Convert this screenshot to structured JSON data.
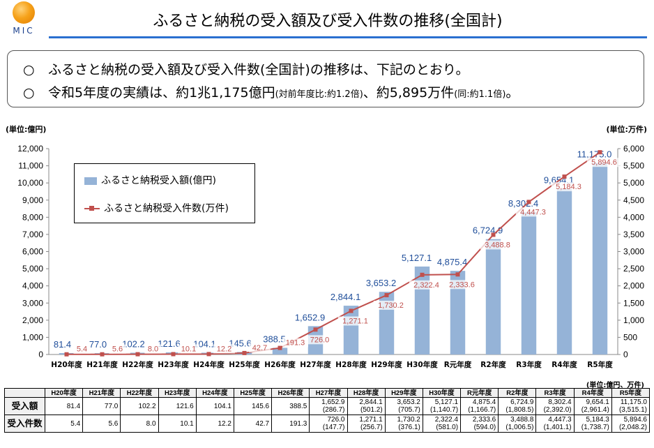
{
  "logo": {
    "text": "MIC",
    "accent": "#f6a21a"
  },
  "header": {
    "title": "ふるさと納税の受入額及び受入件数の推移(全国計)"
  },
  "summary": {
    "bullet": "○",
    "line1": "ふるさと納税の受入額及び受入件数(全国計)の推移は、下記のとおり。",
    "line2_main": "令和5年度の実績は、約1兆1,175億円",
    "line2_note1": "(対前年度比:約1.2倍)",
    "line2_mid": "、約5,895万件",
    "line2_note2": "(同:約1.1倍)",
    "line2_end": "。"
  },
  "axis_units": {
    "left": "(単位:億円)",
    "right": "(単位:万件)"
  },
  "table_unit": "(単位:億円、万件)",
  "chart_data": {
    "type": "bar+line",
    "categories": [
      "H20年度",
      "H21年度",
      "H22年度",
      "H23年度",
      "H24年度",
      "H25年度",
      "H26年度",
      "H27年度",
      "H28年度",
      "H29年度",
      "H30年度",
      "R元年度",
      "R2年度",
      "R3年度",
      "R4年度",
      "R5年度"
    ],
    "series": [
      {
        "name": "ふるさと納税受入額(億円)",
        "type": "bar",
        "axis": "left",
        "color": "#95b3d7",
        "label_color": "#1f4e9a",
        "values": [
          81.4,
          77.0,
          102.2,
          121.6,
          104.1,
          145.6,
          388.5,
          1652.9,
          2844.1,
          3653.2,
          5127.1,
          4875.4,
          6724.9,
          8302.4,
          9654.1,
          11175.0
        ],
        "labels": [
          "81.4",
          "77.0",
          "102.2",
          "121.6",
          "104.1",
          "145.6",
          "388.5",
          "1,652.9",
          "2,844.1",
          "3,653.2",
          "5,127.1",
          "4,875.4",
          "6,724.9",
          "8,302.4",
          "9,654.1",
          "11,175.0"
        ]
      },
      {
        "name": "ふるさと納税受入件数(万件)",
        "type": "line",
        "axis": "right",
        "color": "#c0504d",
        "label_color": "#c0504d",
        "values": [
          5.4,
          5.6,
          8.0,
          10.1,
          12.2,
          42.7,
          191.3,
          726.0,
          1271.1,
          1730.2,
          2322.4,
          2333.6,
          3488.8,
          4447.3,
          5184.3,
          5894.6
        ],
        "labels": [
          "5.4",
          "5.6",
          "8.0",
          "10.1",
          "12.2",
          "42.7",
          "191.3",
          "726.0",
          "1,271.1",
          "1,730.2",
          "2,322.4",
          "2,333.6",
          "3,488.8",
          "4,447.3",
          "5,184.3",
          "5,894.6"
        ]
      }
    ],
    "y_left": {
      "min": 0,
      "max": 12000,
      "step": 1000,
      "ticks": [
        "0",
        "1,000",
        "2,000",
        "3,000",
        "4,000",
        "5,000",
        "6,000",
        "7,000",
        "8,000",
        "9,000",
        "10,000",
        "11,000",
        "12,000"
      ]
    },
    "y_right": {
      "min": 0,
      "max": 6000,
      "step": 500,
      "ticks": [
        "0",
        "500",
        "1,000",
        "1,500",
        "2,000",
        "2,500",
        "3,000",
        "3,500",
        "4,000",
        "4,500",
        "5,000",
        "5,500",
        "6,000"
      ]
    },
    "legend": "top-left",
    "grid": false
  },
  "table": {
    "headers": [
      "H20年度",
      "H21年度",
      "H22年度",
      "H23年度",
      "H24年度",
      "H25年度",
      "H26年度",
      "H27年度",
      "H28年度",
      "H29年度",
      "H30年度",
      "R元年度",
      "R2年度",
      "R3年度",
      "R4年度",
      "R5年度"
    ],
    "rows": [
      {
        "label": "受入額",
        "values": [
          "81.4",
          "77.0",
          "102.2",
          "121.6",
          "104.1",
          "145.6",
          "388.5",
          "1,652.9",
          "2,844.1",
          "3,653.2",
          "5,127.1",
          "4,875.4",
          "6,724.9",
          "8,302.4",
          "9,654.1",
          "11,175.0"
        ],
        "subs": [
          "",
          "",
          "",
          "",
          "",
          "",
          "",
          "(286.7)",
          "(501.2)",
          "(705.7)",
          "(1,140.7)",
          "(1,166.7)",
          "(1,808.5)",
          "(2,392.0)",
          "(2,961.4)",
          "(3,515.1)"
        ]
      },
      {
        "label": "受入件数",
        "values": [
          "5.4",
          "5.6",
          "8.0",
          "10.1",
          "12.2",
          "42.7",
          "191.3",
          "726.0",
          "1,271.1",
          "1,730.2",
          "2,322.4",
          "2,333.6",
          "3,488.8",
          "4,447.3",
          "5,184.3",
          "5,894.6"
        ],
        "subs": [
          "",
          "",
          "",
          "",
          "",
          "",
          "",
          "(147.7)",
          "(256.7)",
          "(376.1)",
          "(581.0)",
          "(594.0)",
          "(1,006.5)",
          "(1,401.1)",
          "(1,738.7)",
          "(2,048.2)"
        ]
      }
    ]
  }
}
